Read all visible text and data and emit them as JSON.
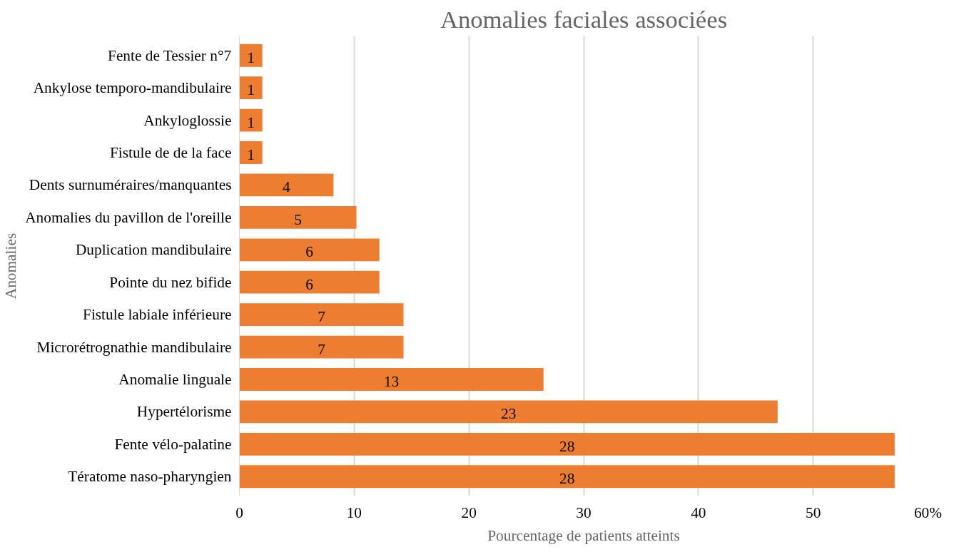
{
  "chart_data": {
    "type": "bar",
    "orientation": "horizontal",
    "title": "Anomalies faciales associées",
    "xlabel": "Pourcentage de patients atteints",
    "ylabel": "Anomalies",
    "categories": [
      "Fente de Tessier n°7",
      "Ankylose temporo-mandibulaire",
      "Ankyloglossie",
      "Fistule de de la face",
      "Dents surnuméraires/manquantes",
      "Anomalies du pavillon de l'oreille",
      "Duplication mandibulaire",
      "Pointe du nez bifide",
      "Fistule labiale inférieure",
      "Microrétrognathie mandibulaire",
      "Anomalie linguale",
      "Hypertélorisme",
      "Fente vélo-palatine",
      "Tératome naso-pharyngien"
    ],
    "values": [
      2,
      2,
      2,
      2,
      8.2,
      10.2,
      12.2,
      12.2,
      14.3,
      14.3,
      26.5,
      46.9,
      57.1,
      57.1
    ],
    "annotations": [
      {
        "text": "1",
        "x": 1,
        "y": "Fente de Tessier n°7"
      },
      {
        "text": "1",
        "x": 1,
        "y": "Ankylose temporo-mandibulaire"
      },
      {
        "text": "1",
        "x": 1,
        "y": "Ankyloglossie"
      },
      {
        "text": "1",
        "x": 1,
        "y": "Fistule de de la face"
      },
      {
        "text": "4",
        "x": 4.1,
        "y": "Dents surnuméraires/manquantes"
      },
      {
        "text": "5",
        "x": 5.1,
        "y": "Anomalies du pavillon de l'oreille"
      },
      {
        "text": "6",
        "x": 6.1,
        "y": "Duplication mandibulaire"
      },
      {
        "text": "6",
        "x": 6.1,
        "y": "Pointe du nez bifide"
      },
      {
        "text": "7",
        "x": 7.15,
        "y": "Fistule labiale inférieure"
      },
      {
        "text": "7",
        "x": 7.15,
        "y": "Microrétrognathie mandibulaire"
      },
      {
        "text": "13",
        "x": 13.25,
        "y": "Anomalie linguale"
      },
      {
        "text": "23",
        "x": 23.45,
        "y": "Hypertélorisme"
      },
      {
        "text": "28",
        "x": 28.55,
        "y": "Fente vélo-palatine"
      },
      {
        "text": "28",
        "x": 28.55,
        "y": "Tératome naso-pharyngien"
      }
    ],
    "color": "#ed7d31",
    "xlim": [
      0,
      60
    ],
    "xticks": [
      0,
      10,
      20,
      30,
      40,
      50,
      {
        "value": 60,
        "label": "60%"
      }
    ],
    "grid": "x"
  }
}
